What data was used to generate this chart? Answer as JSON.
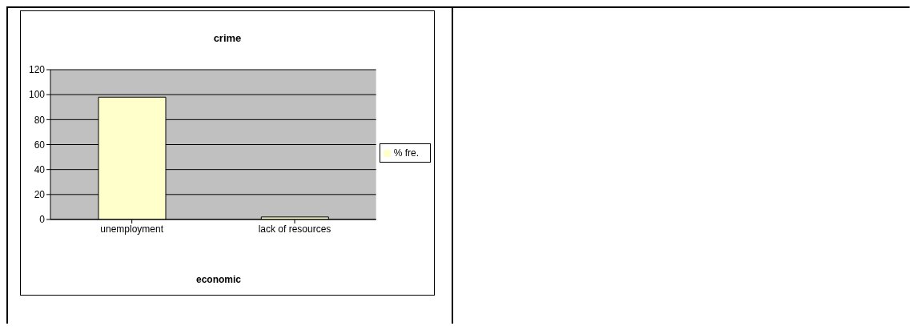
{
  "chart_data": {
    "type": "bar",
    "title": "crime",
    "xlabel": "economic",
    "categories": [
      "unemployment",
      "lack of resources"
    ],
    "series": [
      {
        "name": "% fre.",
        "color": "#ffffcc",
        "values": [
          98,
          2
        ]
      }
    ],
    "ylim": [
      0,
      120
    ],
    "yticks": [
      0,
      20,
      40,
      60,
      80,
      100,
      120
    ],
    "grid": "y",
    "legend": "right"
  }
}
